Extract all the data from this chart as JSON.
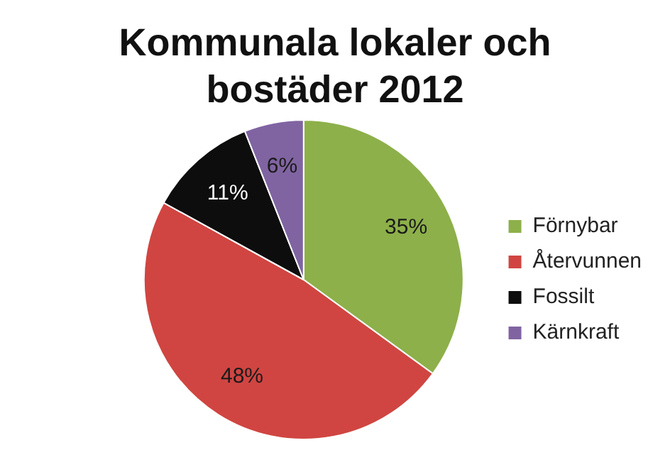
{
  "chart_data": {
    "type": "pie",
    "title": "Kommunala lokaler och bostäder 2012",
    "categories": [
      "Förnybar",
      "Återvunnen",
      "Fossilt",
      "Kärnkraft"
    ],
    "values": [
      35,
      48,
      11,
      6
    ],
    "colors": [
      "#8db04a",
      "#d04541",
      "#0d0d0d",
      "#8064a2"
    ],
    "value_labels": [
      "35%",
      "48%",
      "11%",
      "6%"
    ],
    "legend": "right"
  }
}
